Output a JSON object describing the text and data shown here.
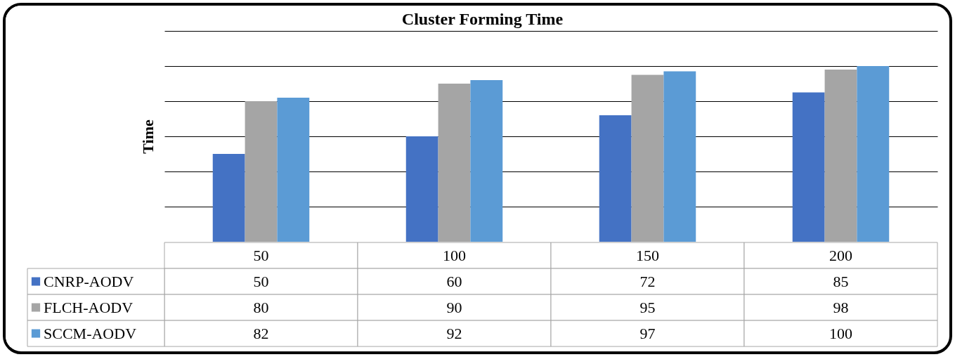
{
  "chart_data": {
    "type": "bar",
    "title": "Cluster Forming Time",
    "ylabel": "Time",
    "categories": [
      "50",
      "100",
      "150",
      "200"
    ],
    "series": [
      {
        "name": "CNRP-AODV",
        "color": "#4472c4",
        "values": [
          50,
          60,
          72,
          85
        ]
      },
      {
        "name": "FLCH-AODV",
        "color": "#a5a5a5",
        "values": [
          80,
          90,
          95,
          98
        ]
      },
      {
        "name": "SCCM-AODV",
        "color": "#5b9bd5",
        "values": [
          82,
          92,
          97,
          100
        ]
      }
    ],
    "ylim": [
      0,
      120
    ],
    "yticks": [
      {
        "value": 20,
        "label": null
      },
      {
        "value": 40,
        "label": null
      },
      {
        "value": 60,
        "label": null
      },
      {
        "value": 80,
        "label": null
      },
      {
        "value": 100,
        "label": null
      },
      {
        "value": 120,
        "label": null
      }
    ],
    "tick_labels": "x",
    "grid": "y",
    "legend": "bottom",
    "data_labels": true
  }
}
